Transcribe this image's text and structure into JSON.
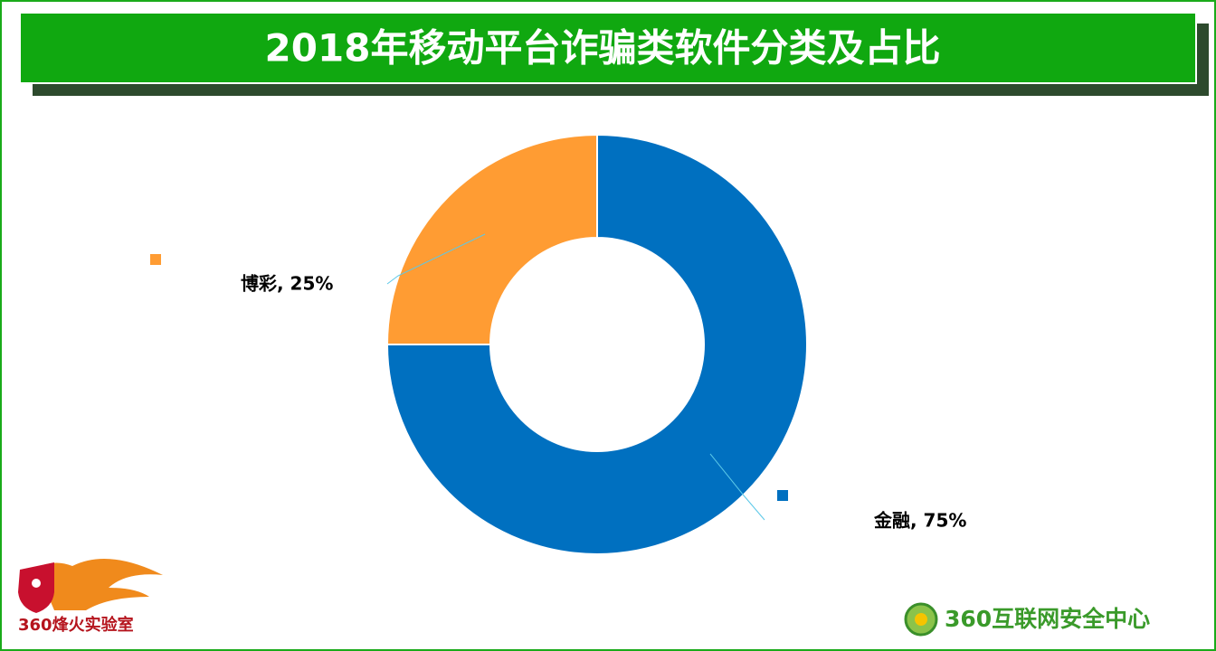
{
  "chart_data": {
    "type": "donut",
    "title": "2018年移动平台诈骗类软件分类及占比",
    "categories": [
      "金融",
      "博彩"
    ],
    "values": [
      75,
      25
    ],
    "value_labels": [
      "金融, 75%",
      "博彩, 25%"
    ],
    "colors": [
      "#0070c0",
      "#ff9c33"
    ]
  },
  "footer": {
    "left_logo": "360烽火实验室",
    "right_logo": "360互联网安全中心"
  }
}
